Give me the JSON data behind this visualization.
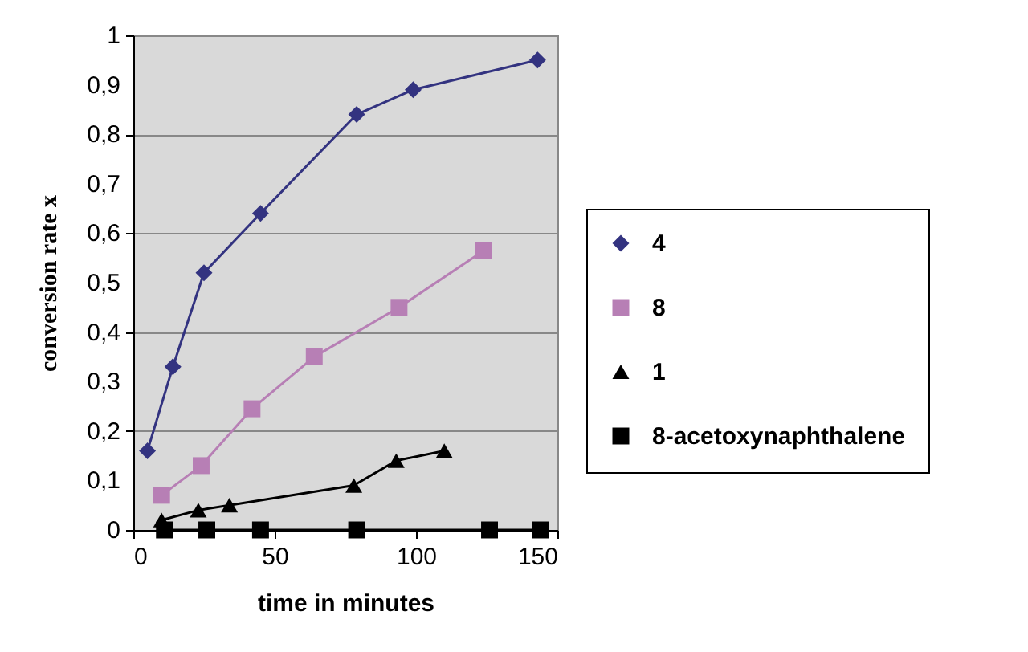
{
  "chart_data": {
    "type": "line",
    "xlabel": "time in minutes",
    "ylabel": "conversion rate x",
    "xlim": [
      0,
      150
    ],
    "xticks": [
      0,
      50,
      100,
      150
    ],
    "ylim": [
      0,
      1
    ],
    "yticks": [
      {
        "value": 0,
        "label": "0"
      },
      {
        "value": 0.1,
        "label": "0,1"
      },
      {
        "value": 0.2,
        "label": "0,2"
      },
      {
        "value": 0.3,
        "label": "0,3"
      },
      {
        "value": 0.4,
        "label": "0,4"
      },
      {
        "value": 0.5,
        "label": "0,5"
      },
      {
        "value": 0.6,
        "label": "0,6"
      },
      {
        "value": 0.7,
        "label": "0,7"
      },
      {
        "value": 0.8,
        "label": "0,8"
      },
      {
        "value": 0.9,
        "label": "0,9"
      },
      {
        "value": 1,
        "label": "1"
      }
    ],
    "grid": "y",
    "legend": "right",
    "line_style": "solid",
    "series": [
      {
        "name": "4",
        "color": "#333380",
        "marker": "diamond",
        "x": [
          5,
          14,
          25,
          45,
          79,
          99,
          143
        ],
        "values": [
          0.16,
          0.33,
          0.52,
          0.64,
          0.84,
          0.89,
          0.95
        ]
      },
      {
        "name": "8",
        "color": "#b77fb5",
        "marker": "square",
        "x": [
          10,
          24,
          42,
          64,
          94,
          124
        ],
        "values": [
          0.07,
          0.13,
          0.245,
          0.35,
          0.45,
          0.565
        ]
      },
      {
        "name": "1",
        "color": "#000000",
        "marker": "triangle",
        "x": [
          10,
          23,
          34,
          78,
          93,
          110
        ],
        "values": [
          0.02,
          0.04,
          0.05,
          0.09,
          0.14,
          0.16
        ]
      },
      {
        "name": "8-acetoxynaphthalene",
        "color": "#000000",
        "marker": "square",
        "x": [
          11,
          26,
          45,
          79,
          126,
          144
        ],
        "values": [
          0,
          0,
          0,
          0,
          0,
          0
        ]
      }
    ]
  }
}
